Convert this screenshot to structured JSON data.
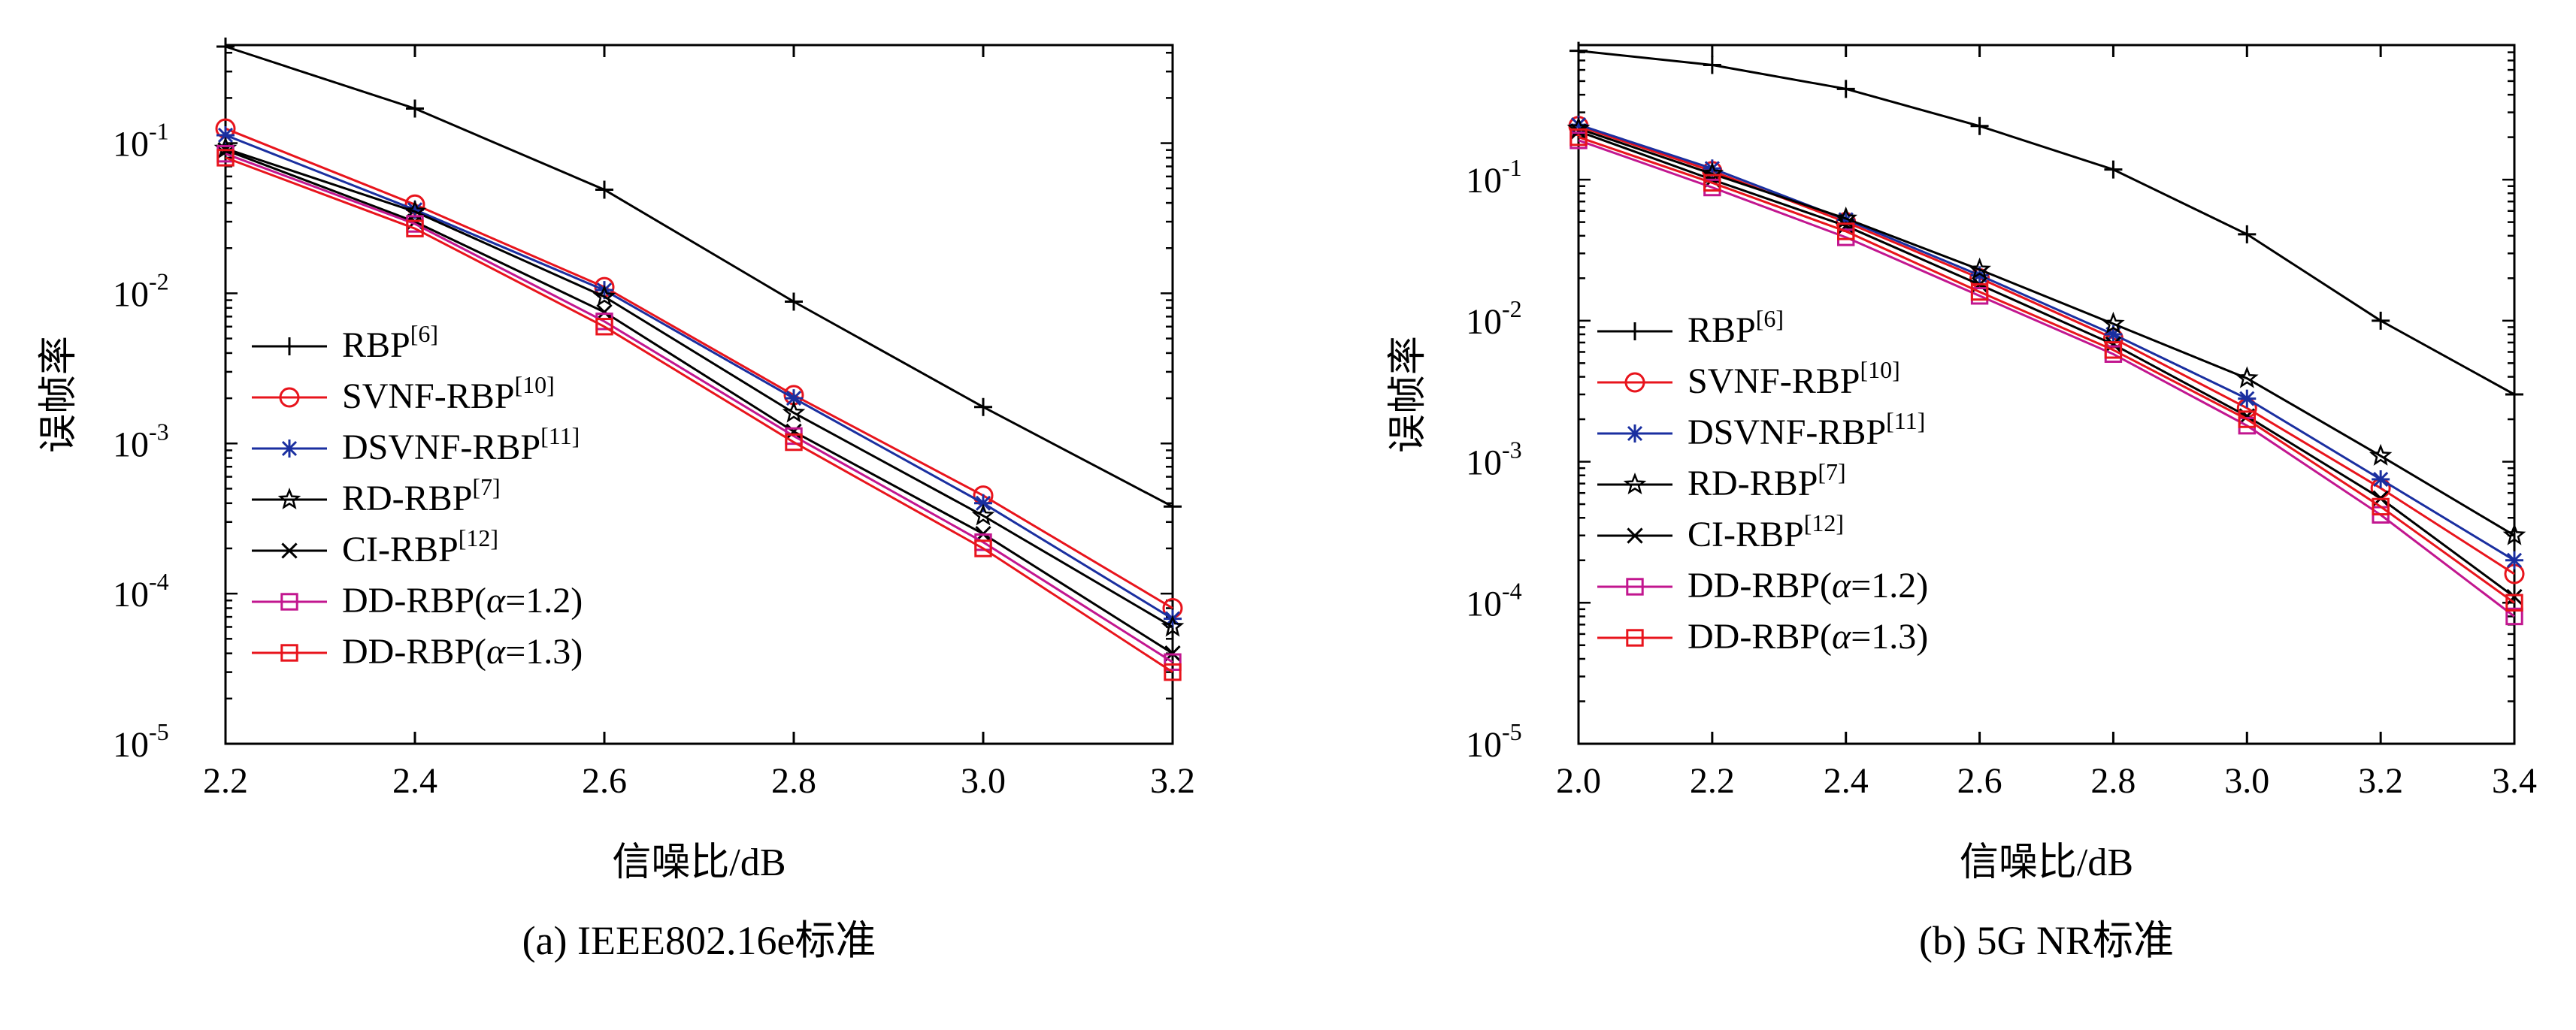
{
  "chart_data": [
    {
      "id": "a",
      "type": "line",
      "caption": "(a) IEEE802.16e标准",
      "xlabel": "信噪比/dB",
      "ylabel": "误帧率",
      "yscale": "log",
      "xlim": [
        2.2,
        3.2
      ],
      "ylim": [
        1e-05,
        0.45
      ],
      "x": [
        2.2,
        2.4,
        2.6,
        2.8,
        3.0,
        3.2
      ],
      "xticks": [
        "2.2",
        "2.4",
        "2.6",
        "2.8",
        "3.0",
        "3.2"
      ],
      "yticks": [
        {
          "value": 0.1,
          "base": "10",
          "exp": "-1"
        },
        {
          "value": 0.01,
          "base": "10",
          "exp": "-2"
        },
        {
          "value": 0.001,
          "base": "10",
          "exp": "-3"
        },
        {
          "value": 0.0001,
          "base": "10",
          "exp": "-4"
        },
        {
          "value": 1e-05,
          "base": "10",
          "exp": "-5"
        }
      ],
      "legend_position": "lower-left",
      "series": [
        {
          "name": "RBP",
          "ref": "[6]",
          "color": "#000000",
          "marker": "plus",
          "values": [
            0.44,
            0.17,
            0.049,
            0.0088,
            0.00175,
            0.00038
          ]
        },
        {
          "name": "SVNF-RBP",
          "ref": "[10]",
          "color": "#e8141c",
          "marker": "circle",
          "values": [
            0.125,
            0.039,
            0.011,
            0.0021,
            0.00045,
            8e-05
          ]
        },
        {
          "name": "DSVNF-RBP",
          "ref": "[11]",
          "color": "#1a2fa0",
          "marker": "asterisk",
          "values": [
            0.113,
            0.036,
            0.0105,
            0.002,
            0.0004,
            6.8e-05
          ]
        },
        {
          "name": "RD-RBP",
          "ref": "[7]",
          "color": "#000000",
          "marker": "star",
          "values": [
            0.092,
            0.035,
            0.0095,
            0.0016,
            0.00033,
            6e-05
          ]
        },
        {
          "name": "CI-RBP",
          "ref": "[12]",
          "color": "#000000",
          "marker": "x",
          "values": [
            0.09,
            0.03,
            0.0075,
            0.0012,
            0.00025,
            4e-05
          ]
        },
        {
          "name": "DD-RBP(α=1.2)",
          "ref": "",
          "color": "#c2168f",
          "marker": "square",
          "values": [
            0.085,
            0.029,
            0.0065,
            0.00112,
            0.00022,
            3.5e-05
          ]
        },
        {
          "name": "DD-RBP(α=1.3)",
          "ref": "",
          "color": "#e8141c",
          "marker": "square",
          "values": [
            0.08,
            0.027,
            0.006,
            0.00102,
            0.0002,
            3e-05
          ]
        }
      ]
    },
    {
      "id": "b",
      "type": "line",
      "caption": "(b) 5G NR标准",
      "xlabel": "信噪比/dB",
      "ylabel": "误帧率",
      "yscale": "log",
      "xlim": [
        2.0,
        3.4
      ],
      "ylim": [
        1e-05,
        0.9
      ],
      "x": [
        2.0,
        2.2,
        2.4,
        2.6,
        2.8,
        3.0,
        3.2,
        3.4
      ],
      "xticks": [
        "2.0",
        "2.2",
        "2.4",
        "2.6",
        "2.8",
        "3.0",
        "3.2",
        "3.4"
      ],
      "yticks": [
        {
          "value": 0.1,
          "base": "10",
          "exp": "-1"
        },
        {
          "value": 0.01,
          "base": "10",
          "exp": "-2"
        },
        {
          "value": 0.001,
          "base": "10",
          "exp": "-3"
        },
        {
          "value": 0.0001,
          "base": "10",
          "exp": "-4"
        },
        {
          "value": 1e-05,
          "base": "10",
          "exp": "-5"
        }
      ],
      "legend_position": "lower-left",
      "series": [
        {
          "name": "RBP",
          "ref": "[6]",
          "color": "#000000",
          "marker": "plus",
          "values": [
            0.82,
            0.65,
            0.44,
            0.24,
            0.118,
            0.041,
            0.01,
            0.003
          ]
        },
        {
          "name": "SVNF-RBP",
          "ref": "[10]",
          "color": "#e8141c",
          "marker": "circle",
          "values": [
            0.24,
            0.115,
            0.05,
            0.02,
            0.0075,
            0.0024,
            0.00065,
            0.00016
          ]
        },
        {
          "name": "DSVNF-RBP",
          "ref": "[11]",
          "color": "#1a2fa0",
          "marker": "asterisk",
          "values": [
            0.245,
            0.12,
            0.052,
            0.021,
            0.008,
            0.0028,
            0.00075,
            0.0002
          ]
        },
        {
          "name": "RD-RBP",
          "ref": "[7]",
          "color": "#000000",
          "marker": "star",
          "values": [
            0.23,
            0.11,
            0.053,
            0.023,
            0.0095,
            0.0039,
            0.0011,
            0.0003
          ]
        },
        {
          "name": "CI-RBP",
          "ref": "[12]",
          "color": "#000000",
          "marker": "x",
          "values": [
            0.22,
            0.1,
            0.047,
            0.018,
            0.0068,
            0.0021,
            0.00055,
            0.00011
          ]
        },
        {
          "name": "DD-RBP(α=1.2)",
          "ref": "",
          "color": "#c2168f",
          "marker": "square",
          "values": [
            0.19,
            0.088,
            0.039,
            0.015,
            0.0058,
            0.0018,
            0.00042,
            8e-05
          ]
        },
        {
          "name": "DD-RBP(α=1.3)",
          "ref": "",
          "color": "#e8141c",
          "marker": "square",
          "values": [
            0.2,
            0.095,
            0.043,
            0.016,
            0.0062,
            0.002,
            0.00048,
            0.0001
          ]
        }
      ]
    }
  ]
}
